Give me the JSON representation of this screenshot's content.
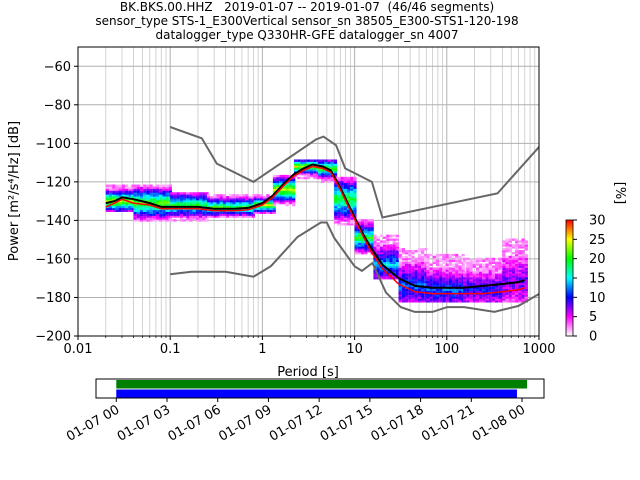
{
  "chart_data": [
    {
      "type": "heatmap",
      "title_lines": [
        "BK.BKS.00.HHZ   2019-01-07 -- 2019-01-07  (46/46 segments)",
        "sensor_type STS-1_E300Vertical sensor_sn 38505_E300-STS1-120-198",
        "datalogger_type Q330HR-GFE datalogger_sn 4007"
      ],
      "xlabel": "Period [s]",
      "ylabel": "Power [m²/s⁴/Hz] [dB]",
      "x_scale": "log",
      "xlim": [
        0.01,
        1000
      ],
      "ylim": [
        -200,
        -50
      ],
      "x_ticks": [
        0.01,
        0.1,
        1,
        10,
        100,
        1000
      ],
      "x_tick_labels": [
        "0.01",
        "0.1",
        "1",
        "10",
        "100",
        "1000"
      ],
      "y_ticks": [
        -200,
        -180,
        -160,
        -140,
        -120,
        -100,
        -80,
        -60
      ],
      "y_tick_labels": [
        "−200",
        "−180",
        "−160",
        "−140",
        "−120",
        "−100",
        "−80",
        "−60"
      ],
      "grid": true,
      "colorbar": {
        "label": "[%]",
        "range": [
          0,
          30
        ],
        "ticks": [
          0,
          5,
          10,
          15,
          20,
          25,
          30
        ],
        "tick_labels": [
          "0",
          "5",
          "10",
          "15",
          "20",
          "25",
          "30"
        ],
        "colors": [
          "#ffffff",
          "#ff00ff",
          "#0000ff",
          "#00ffff",
          "#00ff00",
          "#ffff00",
          "#ff0000"
        ]
      },
      "series": [
        {
          "role": "new-high-noise-model",
          "color": "#666666",
          "x": [
            0.1,
            0.22,
            0.32,
            0.8,
            3.8,
            4.6,
            6.3,
            7.9,
            15.4,
            20,
            354.8,
            10000
          ],
          "y": [
            -91.5,
            -97.4,
            -110.5,
            -120,
            -98,
            -96.5,
            -101,
            -113,
            -120,
            -138.5,
            -126,
            -48.5
          ]
        },
        {
          "role": "new-low-noise-model",
          "color": "#666666",
          "x": [
            0.1,
            0.17,
            0.4,
            0.8,
            1.24,
            2.4,
            4.3,
            5,
            6,
            10,
            12,
            15.6,
            21.9,
            31.6,
            45,
            70,
            101,
            154,
            328,
            600,
            1000
          ],
          "y": [
            -168,
            -166.7,
            -166.7,
            -169.2,
            -163.7,
            -148.6,
            -141.1,
            -141.1,
            -149,
            -163.8,
            -166.2,
            -162.1,
            -177.5,
            -185,
            -187.5,
            -187.5,
            -185,
            -185,
            -187.5,
            -184.4,
            -178.2
          ]
        },
        {
          "role": "mode",
          "color": "#000000",
          "x": [
            0.02,
            0.025,
            0.03,
            0.04,
            0.06,
            0.08,
            0.1,
            0.15,
            0.2,
            0.3,
            0.5,
            0.7,
            1.0,
            1.3,
            1.7,
            2.2,
            2.8,
            3.5,
            4.5,
            5.5,
            7,
            9,
            12,
            15,
            20,
            30,
            45,
            70,
            100,
            150,
            250,
            400,
            600,
            700
          ],
          "y": [
            -131,
            -130,
            -128,
            -129,
            -131,
            -133,
            -133,
            -133,
            -133,
            -134,
            -134,
            -133.5,
            -131,
            -127,
            -121,
            -116,
            -113,
            -111,
            -112,
            -114,
            -123,
            -134,
            -146,
            -154,
            -163,
            -170,
            -174,
            -175,
            -175,
            -175,
            -174,
            -173,
            -172,
            -171
          ]
        },
        {
          "role": "minimum",
          "color": "#ff0000",
          "x": [
            0.02,
            0.025,
            0.03,
            0.04,
            0.06,
            0.08,
            0.1,
            0.15,
            0.2,
            0.3,
            0.5,
            0.7,
            1.0,
            1.3,
            1.7,
            2.2,
            2.8,
            3.5,
            4.5,
            5.5,
            7,
            9,
            12,
            15,
            20,
            30,
            45,
            70,
            100,
            150,
            250,
            400,
            600,
            700
          ],
          "y": [
            -133,
            -131,
            -129,
            -131,
            -132,
            -134,
            -134,
            -134,
            -134,
            -135,
            -135,
            -134.5,
            -132,
            -128,
            -122,
            -117,
            -114,
            -112,
            -113,
            -115,
            -124,
            -135,
            -147,
            -156,
            -165,
            -173,
            -177,
            -178,
            -178,
            -178,
            -178,
            -177,
            -176,
            -175
          ]
        }
      ],
      "histogram_bands": [
        {
          "period_range": [
            0.02,
            0.04
          ],
          "db_range": [
            -135,
            -122
          ],
          "peak": [
            -130,
            22
          ]
        },
        {
          "period_range": [
            0.04,
            0.1
          ],
          "db_range": [
            -140,
            -122
          ],
          "peak": [
            -131,
            20
          ]
        },
        {
          "period_range": [
            0.1,
            0.25
          ],
          "db_range": [
            -140,
            -126
          ],
          "peak": [
            -132,
            18
          ]
        },
        {
          "period_range": [
            0.25,
            0.8
          ],
          "db_range": [
            -138,
            -127
          ],
          "peak": [
            -133,
            18
          ]
        },
        {
          "period_range": [
            0.8,
            1.3
          ],
          "db_range": [
            -136,
            -127
          ],
          "peak": [
            -132,
            22
          ]
        },
        {
          "period_range": [
            1.3,
            2.2
          ],
          "db_range": [
            -132,
            -117
          ],
          "peak": [
            -124,
            22
          ]
        },
        {
          "period_range": [
            2.2,
            4
          ],
          "db_range": [
            -118,
            -109
          ],
          "peak": [
            -112,
            22
          ]
        },
        {
          "period_range": [
            4,
            6
          ],
          "db_range": [
            -120,
            -109
          ],
          "peak": [
            -113,
            20
          ]
        },
        {
          "period_range": [
            6,
            10
          ],
          "db_range": [
            -142,
            -118
          ],
          "peak": [
            -129,
            18
          ]
        },
        {
          "period_range": [
            10,
            16
          ],
          "db_range": [
            -157,
            -140
          ],
          "peak": [
            -149,
            18
          ]
        },
        {
          "period_range": [
            16,
            30
          ],
          "db_range": [
            -170,
            -148
          ],
          "peak": [
            -163,
            12
          ]
        },
        {
          "period_range": [
            30,
            60
          ],
          "db_range": [
            -182,
            -155
          ],
          "peak": [
            -174,
            10
          ]
        },
        {
          "period_range": [
            60,
            150
          ],
          "db_range": [
            -182,
            -158
          ],
          "peak": [
            -176,
            10
          ]
        },
        {
          "period_range": [
            150,
            400
          ],
          "db_range": [
            -182,
            -160
          ],
          "peak": [
            -176,
            8
          ]
        },
        {
          "period_range": [
            400,
            700
          ],
          "db_range": [
            -182,
            -150
          ],
          "peak": [
            -172,
            6
          ]
        }
      ]
    },
    {
      "type": "timeline",
      "tick_labels": [
        "01-07 00",
        "01-07 03",
        "01-07 06",
        "01-07 09",
        "01-07 12",
        "01-07 15",
        "01-07 18",
        "01-07 21",
        "01-08 00"
      ],
      "bars": [
        {
          "color": "#008000",
          "start_hour": 0,
          "end_hour": 24.3
        },
        {
          "color": "#0000ff",
          "start_hour": 0,
          "end_hour": 23.7
        }
      ],
      "xlim_hours": [
        -1.2,
        25.3
      ]
    }
  ]
}
